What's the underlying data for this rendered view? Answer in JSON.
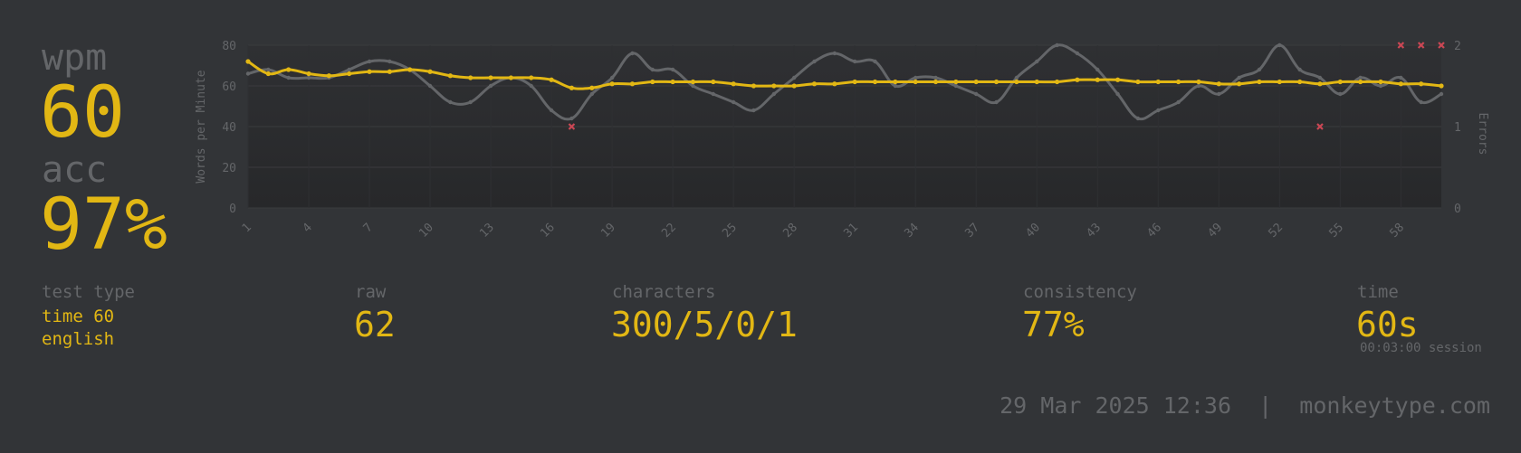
{
  "stats": {
    "wpm_label": "wpm",
    "wpm_value": "60",
    "acc_label": "acc",
    "acc_value": "97%"
  },
  "details": {
    "test_type_label": "test type",
    "test_type_line1": "time 60",
    "test_type_line2": "english",
    "raw_label": "raw",
    "raw_value": "62",
    "characters_label": "characters",
    "characters_value": "300/5/0/1",
    "consistency_label": "consistency",
    "consistency_value": "77%",
    "time_label": "time",
    "time_value": "60s",
    "session_text": "00:03:00 session"
  },
  "footer": {
    "date": "29 Mar 2025 12:36",
    "separator": "|",
    "site": "monkeytype.com"
  },
  "colors": {
    "background": "#323437",
    "main": "#e2b714",
    "sub": "#646669",
    "raw_line": "#646669",
    "error": "#ca4754"
  },
  "chart_data": {
    "type": "line",
    "ylabel": "Words per Minute",
    "y2label": "Errors",
    "ylim": [
      0,
      80
    ],
    "y2lim": [
      0,
      2
    ],
    "yticks": [
      0,
      20,
      40,
      60,
      80
    ],
    "y2ticks": [
      0,
      1,
      2
    ],
    "x": [
      1,
      2,
      3,
      4,
      5,
      6,
      7,
      8,
      9,
      10,
      11,
      12,
      13,
      14,
      15,
      16,
      17,
      18,
      19,
      20,
      21,
      22,
      23,
      24,
      25,
      26,
      27,
      28,
      29,
      30,
      31,
      32,
      33,
      34,
      35,
      36,
      37,
      38,
      39,
      40,
      41,
      42,
      43,
      44,
      45,
      46,
      47,
      48,
      49,
      50,
      51,
      52,
      53,
      54,
      55,
      56,
      57,
      58,
      59,
      60
    ],
    "xticks": [
      1,
      4,
      7,
      10,
      13,
      16,
      19,
      22,
      25,
      28,
      31,
      34,
      37,
      40,
      43,
      46,
      49,
      52,
      55,
      58
    ],
    "series": [
      {
        "name": "wpm",
        "values": [
          72,
          66,
          68,
          66,
          65,
          66,
          67,
          67,
          68,
          67,
          65,
          64,
          64,
          64,
          64,
          63,
          59,
          59,
          61,
          61,
          62,
          62,
          62,
          62,
          61,
          60,
          60,
          60,
          61,
          61,
          62,
          62,
          62,
          62,
          62,
          62,
          62,
          62,
          62,
          62,
          62,
          63,
          63,
          63,
          62,
          62,
          62,
          62,
          61,
          61,
          62,
          62,
          62,
          61,
          62,
          62,
          62,
          61,
          61,
          60
        ]
      },
      {
        "name": "raw",
        "values": [
          66,
          68,
          64,
          64,
          64,
          68,
          72,
          72,
          68,
          60,
          52,
          52,
          60,
          64,
          60,
          48,
          44,
          56,
          64,
          76,
          68,
          68,
          60,
          56,
          52,
          48,
          56,
          64,
          72,
          76,
          72,
          72,
          60,
          64,
          64,
          60,
          56,
          52,
          64,
          72,
          80,
          76,
          68,
          56,
          44,
          48,
          52,
          60,
          56,
          64,
          68,
          80,
          68,
          64,
          56,
          64,
          60,
          64,
          52,
          56
        ]
      },
      {
        "name": "errors",
        "points": [
          [
            17,
            1
          ],
          [
            54,
            1
          ],
          [
            58,
            2
          ],
          [
            59,
            2
          ],
          [
            60,
            2
          ]
        ]
      }
    ]
  }
}
